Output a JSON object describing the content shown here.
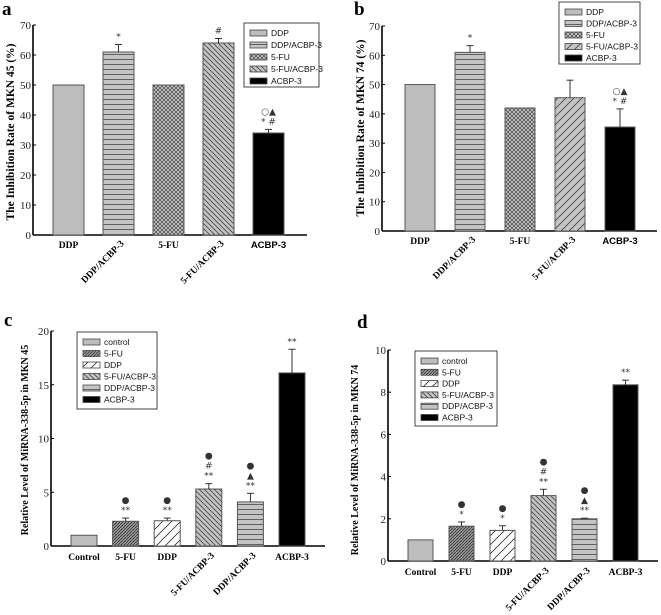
{
  "figure": {
    "panels": [
      "a",
      "b",
      "c",
      "d"
    ]
  },
  "colors": {
    "gray_fill": "#bdbdbd",
    "black_fill": "#000000",
    "white_fill": "#ffffff",
    "axis": "#000000",
    "pattern_line": "#555555"
  },
  "chart_data": [
    {
      "panel": "a",
      "type": "bar",
      "title": "",
      "ylabel": "The Inhibition Rate of MKN 45 (%)",
      "xlabel": "",
      "ylim": [
        0,
        70
      ],
      "yticks": [
        0,
        10,
        20,
        30,
        40,
        50,
        60,
        70
      ],
      "grid": false,
      "legend_position": "top-right",
      "categories": [
        "DDP",
        "DDP/ACBP-3",
        "5-FU",
        "5-FU/ACBP-3",
        "ACBP-3"
      ],
      "rotated_labels": [
        false,
        true,
        false,
        true,
        false
      ],
      "values": [
        50,
        61,
        50,
        64,
        34
      ],
      "errors": [
        0,
        2.5,
        0,
        1.5,
        1.2
      ],
      "patterns": [
        "solid-gray",
        "horizontal",
        "crosshatch",
        "diag-back",
        "solid-black"
      ],
      "annotations": [
        [],
        [
          "*"
        ],
        [],
        [
          "#"
        ],
        [
          "○▲",
          "* #"
        ]
      ],
      "legend": [
        {
          "label": "DDP",
          "pattern": "solid-gray"
        },
        {
          "label": "DDP/ACBP-3",
          "pattern": "horizontal"
        },
        {
          "label": "5-FU",
          "pattern": "crosshatch"
        },
        {
          "label": "5-FU/ACBP-3",
          "pattern": "diag-back"
        },
        {
          "label": "ACBP-3",
          "pattern": "solid-black"
        }
      ]
    },
    {
      "panel": "b",
      "type": "bar",
      "title": "",
      "ylabel": "The Inhibition Rate of MKN 74 (%)",
      "xlabel": "",
      "ylim": [
        0,
        70
      ],
      "yticks": [
        0,
        10,
        20,
        30,
        40,
        50,
        60,
        70
      ],
      "grid": false,
      "legend_position": "top-right",
      "categories": [
        "DDP",
        "DDP/ACBP-3",
        "5-FU",
        "5-FU/ACBP-3",
        "ACBP-3"
      ],
      "rotated_labels": [
        false,
        true,
        false,
        true,
        false
      ],
      "values": [
        50,
        61,
        42,
        45.5,
        35.5
      ],
      "errors": [
        0,
        2.3,
        0,
        6,
        6.2
      ],
      "patterns": [
        "solid-gray",
        "horizontal",
        "crosshatch",
        "diag-fwd",
        "solid-black"
      ],
      "annotations": [
        [],
        [
          "*"
        ],
        [],
        [],
        [
          "○▲",
          "* #"
        ]
      ],
      "legend": [
        {
          "label": "DDP",
          "pattern": "solid-gray"
        },
        {
          "label": "DDP/ACBP-3",
          "pattern": "horizontal"
        },
        {
          "label": "5-FU",
          "pattern": "crosshatch"
        },
        {
          "label": "5-FU/ACBP-3",
          "pattern": "diag-fwd"
        },
        {
          "label": "ACBP-3",
          "pattern": "solid-black"
        }
      ]
    },
    {
      "panel": "c",
      "type": "bar",
      "title": "",
      "ylabel": "Relative Level of MiRNA-338-5p in MKN 45",
      "xlabel": "",
      "ylim": [
        0,
        20
      ],
      "yticks": [
        0,
        5,
        10,
        15,
        20
      ],
      "grid": false,
      "legend_position": "top-left",
      "categories": [
        "Control",
        "5-FU",
        "DDP",
        "5-FU/ACBP-3",
        "DDP/ACBP-3",
        "ACBP-3"
      ],
      "rotated_labels": [
        false,
        false,
        false,
        true,
        true,
        false
      ],
      "values": [
        1.0,
        2.3,
        2.35,
        5.3,
        4.1,
        16.1
      ],
      "errors": [
        0,
        0.3,
        0.25,
        0.5,
        0.8,
        2.2
      ],
      "patterns": [
        "solid-gray",
        "dense-fwd",
        "diag-fwd-white",
        "diag-back",
        "horizontal",
        "solid-black"
      ],
      "annotations": [
        [],
        [
          "●",
          "**"
        ],
        [
          "●",
          "**"
        ],
        [
          "●",
          "#",
          "**"
        ],
        [
          "●",
          "▲",
          "**"
        ],
        [
          "**"
        ]
      ],
      "legend": [
        {
          "label": "control",
          "pattern": "solid-gray"
        },
        {
          "label": "5-FU",
          "pattern": "dense-fwd"
        },
        {
          "label": "DDP",
          "pattern": "diag-fwd-white"
        },
        {
          "label": "5-FU/ACBP-3",
          "pattern": "diag-back"
        },
        {
          "label": "DDP/ACBP-3",
          "pattern": "horizontal"
        },
        {
          "label": "ACBP-3",
          "pattern": "solid-black"
        }
      ]
    },
    {
      "panel": "d",
      "type": "bar",
      "title": "",
      "ylabel": "Relative Level of MiRNA-338-5p in MKN 74",
      "xlabel": "",
      "ylim": [
        0,
        10
      ],
      "yticks": [
        0,
        2,
        4,
        6,
        8,
        10
      ],
      "grid": false,
      "legend_position": "top-left",
      "categories": [
        "Control",
        "5-FU",
        "DDP",
        "5-FU/ACBP-3",
        "DDP/ACBP-3",
        "ACBP-3"
      ],
      "rotated_labels": [
        false,
        false,
        false,
        true,
        true,
        false
      ],
      "values": [
        1.0,
        1.65,
        1.45,
        3.1,
        2.0,
        8.35
      ],
      "errors": [
        0,
        0.2,
        0.22,
        0.3,
        0.03,
        0.22
      ],
      "patterns": [
        "solid-gray",
        "dense-fwd",
        "diag-fwd-white",
        "diag-back",
        "horizontal",
        "solid-black"
      ],
      "annotations": [
        [],
        [
          "●",
          "*"
        ],
        [
          "●",
          "*"
        ],
        [
          "●",
          "#",
          "**"
        ],
        [
          "●",
          "▲",
          "**"
        ],
        [
          "**"
        ]
      ],
      "legend": [
        {
          "label": "control",
          "pattern": "solid-gray"
        },
        {
          "label": "5-FU",
          "pattern": "dense-fwd"
        },
        {
          "label": "DDP",
          "pattern": "diag-fwd-white"
        },
        {
          "label": "5-FU/ACBP-3",
          "pattern": "diag-back"
        },
        {
          "label": "DDP/ACBP-3",
          "pattern": "horizontal"
        },
        {
          "label": "ACBP-3",
          "pattern": "solid-black"
        }
      ]
    }
  ]
}
